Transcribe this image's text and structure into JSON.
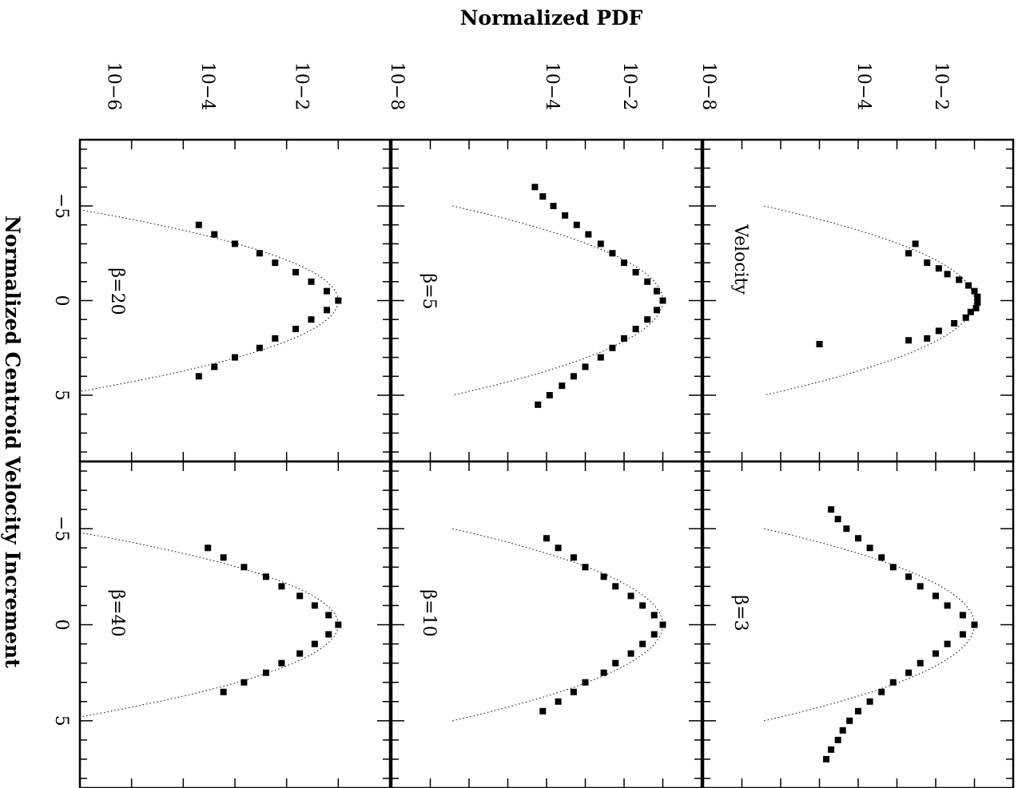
{
  "figure": {
    "ylabel": "Normalized PDF",
    "xlabel": "Normalized Centroid Velocity Increment",
    "y_ticks": [
      "10",
      "10",
      "10",
      "10"
    ],
    "y_tick_exponents": [
      "−6",
      "−4",
      "−2"
    ],
    "x_ticks": [
      "−5",
      "0",
      "5"
    ]
  },
  "chart_data": [
    {
      "type": "scatter",
      "title": "",
      "panel_label": "Velocity",
      "xlabel": "Normalized Centroid Velocity Increment",
      "ylabel": "Normalized PDF",
      "yscale": "log",
      "xlim": [
        -8.5,
        8.5
      ],
      "ylim": [
        1e-08,
        1
      ],
      "grid": false,
      "gaussian_reference": "dotted",
      "series": [
        {
          "marker": "filled-square",
          "x": [
            -3.0,
            -2.5,
            -2.0,
            -1.7,
            -1.4,
            -1.1,
            -0.8,
            -0.5,
            -0.2,
            0.1,
            0.4,
            0.6,
            0.9,
            1.2,
            1.6,
            2.0,
            2.3,
            2.1
          ],
          "y": [
            0.003,
            0.002,
            0.006,
            0.012,
            0.02,
            0.04,
            0.07,
            0.1,
            0.12,
            0.12,
            0.11,
            0.08,
            0.06,
            0.03,
            0.012,
            0.006,
            1e-05,
            0.002
          ]
        }
      ]
    },
    {
      "type": "scatter",
      "title": "",
      "panel_label": "β=3",
      "yscale": "log",
      "xlim": [
        -8.5,
        8.5
      ],
      "ylim": [
        1e-08,
        1
      ],
      "gaussian_reference": "dotted",
      "series": [
        {
          "marker": "filled-square",
          "x": [
            -6.0,
            -5.5,
            -5.0,
            -4.5,
            -4.0,
            -3.5,
            -3.0,
            -2.5,
            -2.0,
            -1.5,
            -1.0,
            -0.5,
            0.0,
            0.5,
            1.0,
            1.5,
            2.0,
            2.5,
            3.0,
            3.5,
            4.0,
            4.5,
            5.0,
            5.5,
            6.0,
            6.5,
            7.0
          ],
          "y": [
            2e-05,
            3e-05,
            5e-05,
            0.0001,
            0.0002,
            0.0004,
            0.0008,
            0.002,
            0.004,
            0.01,
            0.02,
            0.05,
            0.1,
            0.05,
            0.02,
            0.01,
            0.004,
            0.002,
            0.0008,
            0.0004,
            0.0002,
            0.0001,
            6e-05,
            4e-05,
            3e-05,
            2e-05,
            1.5e-05
          ]
        }
      ]
    },
    {
      "type": "scatter",
      "title": "",
      "panel_label": "β=5",
      "yscale": "log",
      "xlim": [
        -8.5,
        8.5
      ],
      "ylim": [
        1e-08,
        1
      ],
      "gaussian_reference": "dotted",
      "series": [
        {
          "marker": "filled-square",
          "x": [
            -6.0,
            -5.5,
            -5.0,
            -4.5,
            -4.0,
            -3.5,
            -3.0,
            -2.5,
            -2.0,
            -1.5,
            -1.0,
            -0.5,
            0.0,
            0.5,
            1.0,
            1.5,
            2.0,
            2.5,
            3.0,
            3.5,
            4.0,
            4.5,
            5.0,
            5.5
          ],
          "y": [
            5e-05,
            8e-05,
            0.00015,
            0.0003,
            0.0006,
            0.0012,
            0.0025,
            0.005,
            0.01,
            0.02,
            0.04,
            0.07,
            0.1,
            0.07,
            0.04,
            0.02,
            0.01,
            0.005,
            0.0025,
            0.001,
            0.0005,
            0.00025,
            0.00012,
            6e-05
          ]
        }
      ]
    },
    {
      "type": "scatter",
      "title": "",
      "panel_label": "β=10",
      "yscale": "log",
      "xlim": [
        -8.5,
        8.5
      ],
      "ylim": [
        1e-08,
        1
      ],
      "gaussian_reference": "dotted",
      "series": [
        {
          "marker": "filled-square",
          "x": [
            -4.5,
            -4.0,
            -3.5,
            -3.0,
            -2.5,
            -2.0,
            -1.5,
            -1.0,
            -0.5,
            0.0,
            0.5,
            1.0,
            1.5,
            2.0,
            2.5,
            3.0,
            3.5,
            4.0,
            4.5
          ],
          "y": [
            0.0001,
            0.0002,
            0.0005,
            0.001,
            0.003,
            0.006,
            0.015,
            0.03,
            0.06,
            0.1,
            0.06,
            0.03,
            0.015,
            0.006,
            0.003,
            0.001,
            0.0005,
            0.0002,
            8e-05
          ]
        }
      ]
    },
    {
      "type": "scatter",
      "title": "",
      "panel_label": "β=20",
      "yscale": "log",
      "xlim": [
        -8.5,
        8.5
      ],
      "ylim": [
        1e-06,
        1
      ],
      "gaussian_reference": "dotted",
      "series": [
        {
          "marker": "filled-square",
          "x": [
            -4.0,
            -3.5,
            -3.0,
            -2.5,
            -2.0,
            -1.5,
            -1.0,
            -0.5,
            0.0,
            0.5,
            1.0,
            1.5,
            2.0,
            2.5,
            3.0,
            3.5,
            4.0
          ],
          "y": [
            0.0002,
            0.0004,
            0.001,
            0.003,
            0.006,
            0.015,
            0.03,
            0.06,
            0.1,
            0.06,
            0.03,
            0.015,
            0.006,
            0.003,
            0.001,
            0.0004,
            0.0002
          ]
        }
      ]
    },
    {
      "type": "scatter",
      "title": "",
      "panel_label": "β=40",
      "yscale": "log",
      "xlim": [
        -8.5,
        8.5
      ],
      "ylim": [
        1e-06,
        1
      ],
      "gaussian_reference": "dotted",
      "series": [
        {
          "marker": "filled-square",
          "x": [
            -4.0,
            -3.5,
            -3.0,
            -2.5,
            -2.0,
            -1.5,
            -1.0,
            -0.5,
            0.0,
            0.5,
            1.0,
            1.5,
            2.0,
            2.5,
            3.0,
            3.5
          ],
          "y": [
            0.0003,
            0.0006,
            0.0015,
            0.004,
            0.008,
            0.018,
            0.035,
            0.065,
            0.1,
            0.065,
            0.035,
            0.018,
            0.008,
            0.004,
            0.0015,
            0.0006
          ]
        }
      ]
    }
  ]
}
